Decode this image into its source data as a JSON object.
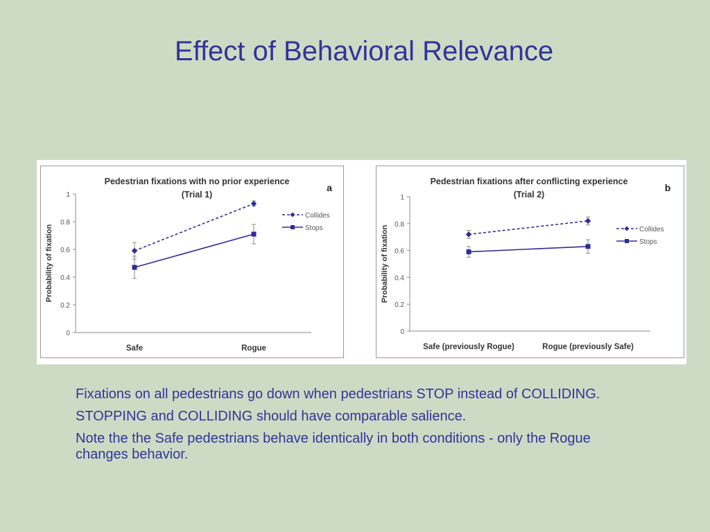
{
  "slide": {
    "title": "Effect of Behavioral Relevance",
    "paragraphs": [
      "Fixations on all pedestrians go down when pedestrians STOP instead of COLLIDING.",
      "STOPPING and COLLIDING should have comparable salience.",
      "Note the the Safe pedestrians behave identically in both conditions - only the Rogue changes behavior."
    ]
  },
  "colors": {
    "series": "#2e2c96",
    "axis": "#8a8a8a",
    "text": "#333333",
    "title_text": "#33339a",
    "background": "#cddbc5"
  },
  "chart_data": [
    {
      "type": "line",
      "panel_label": "a",
      "title": "Pedestrian fixations with no prior experience",
      "subtitle": "(Trial 1)",
      "xlabel": "",
      "ylabel": "Probability of fixation",
      "categories": [
        "Safe",
        "Rogue"
      ],
      "ylim": [
        0,
        1
      ],
      "yticks": [
        "0",
        "0.2",
        "0.4",
        "0.6",
        "0.8",
        "1"
      ],
      "grid": false,
      "legend": "right",
      "series": [
        {
          "name": "Collides",
          "style": "dashed",
          "marker": "diamond",
          "values": [
            0.59,
            0.93
          ],
          "errors": [
            0.06,
            0.02
          ]
        },
        {
          "name": "Stops",
          "style": "solid",
          "marker": "square",
          "values": [
            0.47,
            0.71
          ],
          "errors": [
            0.08,
            0.07
          ]
        }
      ]
    },
    {
      "type": "line",
      "panel_label": "b",
      "title": "Pedestrian fixations after conflicting experience",
      "subtitle": "(Trial 2)",
      "xlabel": "",
      "ylabel": "Probability of fixation",
      "categories": [
        "Safe (previously Rogue)",
        "Rogue (previously Safe)"
      ],
      "ylim": [
        0,
        1
      ],
      "yticks": [
        "0",
        "0.2",
        "0.4",
        "0.6",
        "0.8",
        "1"
      ],
      "grid": false,
      "legend": "right",
      "series": [
        {
          "name": "Collides",
          "style": "dashed",
          "marker": "diamond",
          "values": [
            0.72,
            0.82
          ],
          "errors": [
            0.03,
            0.03
          ]
        },
        {
          "name": "Stops",
          "style": "solid",
          "marker": "square",
          "values": [
            0.59,
            0.63
          ],
          "errors": [
            0.04,
            0.05
          ]
        }
      ]
    }
  ]
}
